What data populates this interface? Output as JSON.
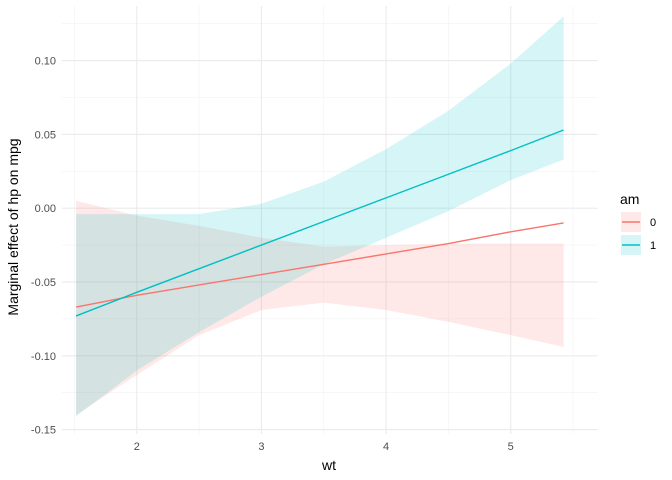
{
  "chart_data": {
    "type": "line",
    "title": "",
    "xlabel": "wt",
    "ylabel": "Marginal effect of hp on mpg",
    "xlim": [
      1.4,
      5.7
    ],
    "ylim": [
      -0.153,
      0.137
    ],
    "x_ticks": [
      2,
      3,
      4,
      5
    ],
    "y_ticks": [
      -0.15,
      -0.1,
      -0.05,
      0.0,
      0.05,
      0.1
    ],
    "y_tick_labels": [
      "-0.15",
      "-0.10",
      "-0.05",
      "0.00",
      "0.05",
      "0.10"
    ],
    "grid": true,
    "legend": {
      "title": "am",
      "position": "right"
    },
    "series": [
      {
        "name": "0",
        "color": "#F8766D",
        "fill": "#FFE9E8",
        "x": [
          1.513,
          2.0,
          2.5,
          3.0,
          3.5,
          4.0,
          4.5,
          5.0,
          5.424
        ],
        "y": [
          -0.067,
          -0.059,
          -0.052,
          -0.045,
          -0.038,
          -0.031,
          -0.024,
          -0.016,
          -0.01
        ],
        "lower": [
          -0.14,
          -0.113,
          -0.086,
          -0.069,
          -0.064,
          -0.069,
          -0.077,
          -0.086,
          -0.094
        ],
        "upper": [
          0.005,
          -0.005,
          -0.012,
          -0.02,
          -0.026,
          -0.025,
          -0.024,
          -0.024,
          -0.024
        ]
      },
      {
        "name": "1",
        "color": "#00BFC4",
        "fill": "#E1F6F8",
        "x": [
          1.513,
          2.0,
          2.5,
          3.0,
          3.5,
          4.0,
          4.5,
          5.0,
          5.424
        ],
        "y": [
          -0.073,
          -0.057,
          -0.041,
          -0.025,
          -0.009,
          0.007,
          0.023,
          0.039,
          0.053
        ],
        "lower": [
          -0.141,
          -0.11,
          -0.084,
          -0.06,
          -0.038,
          -0.02,
          -0.002,
          0.019,
          0.033
        ],
        "upper": [
          -0.004,
          -0.004,
          -0.004,
          0.003,
          0.018,
          0.04,
          0.066,
          0.098,
          0.13
        ]
      }
    ]
  }
}
